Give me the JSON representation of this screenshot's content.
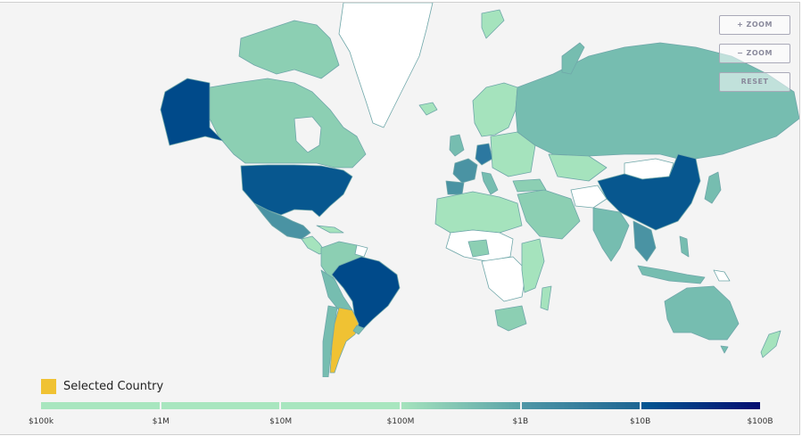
{
  "controls": {
    "zoom_in_label": "+ ZOOM",
    "zoom_out_label": "− ZOOM",
    "reset_label": "RESET"
  },
  "legend": {
    "selected_label": "Selected Country",
    "selected_color": "#f0c233"
  },
  "scale": {
    "ticks": [
      "$100k",
      "$1M",
      "$10M",
      "$100M",
      "$1B",
      "$10B",
      "$100B"
    ],
    "segments": [
      {
        "from": "#a8e6bf",
        "to": "#a8e6bf"
      },
      {
        "from": "#a8e6bf",
        "to": "#a8e6bf"
      },
      {
        "from": "#a8e6bf",
        "to": "#a8e6bf"
      },
      {
        "from": "#a5e3bd",
        "to": "#5aa3a8"
      },
      {
        "from": "#4f97a6",
        "to": "#1d6593"
      },
      {
        "from": "#035792",
        "to": "#040d70"
      }
    ]
  },
  "colors": {
    "ocean": "#f4f4f4",
    "no_data": "#ffffff",
    "tier1": "#a5e3bd",
    "tier2": "#8ccfb3",
    "tier3": "#76bdb0",
    "tier4": "#4a93a3",
    "tier5": "#2c78a0",
    "tier6": "#07578f",
    "tier7": "#004a8a",
    "border": "#6fa7a9",
    "selected": "#f0c233"
  },
  "map": {
    "selected_country": "Argentina"
  }
}
